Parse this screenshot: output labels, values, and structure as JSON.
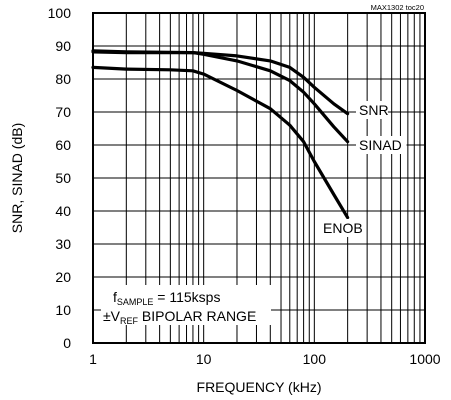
{
  "chart_data": {
    "type": "line",
    "tag": "MAX1302 toc20",
    "xlabel": "FREQUENCY (kHz)",
    "ylabel": "SNR, SINAD (dB)",
    "xscale": "log",
    "xlim": [
      1,
      1000
    ],
    "ylim": [
      0,
      100
    ],
    "xticks": [
      "1",
      "10",
      "100",
      "1000"
    ],
    "yticks": [
      "0",
      "10",
      "20",
      "30",
      "40",
      "50",
      "60",
      "70",
      "80",
      "90",
      "100"
    ],
    "grid": true,
    "annotation": {
      "line1_prefix": "f",
      "line1_sub": "SAMPLE",
      "line1_suffix": " = 115ksps",
      "line2_prefix": "±V",
      "line2_sub": "REF",
      "line2_suffix": " BIPOLAR RANGE"
    },
    "series": [
      {
        "name": "SNR",
        "x": [
          1,
          2,
          5,
          8,
          10,
          20,
          40,
          60,
          80,
          100,
          150,
          200
        ],
        "y": [
          88.5,
          88.2,
          88.1,
          88.0,
          87.8,
          87.0,
          85.5,
          83.5,
          80.5,
          77.5,
          72.5,
          69.5
        ]
      },
      {
        "name": "SINAD",
        "x": [
          1,
          2,
          5,
          8,
          10,
          20,
          40,
          60,
          80,
          100,
          150,
          200
        ],
        "y": [
          88.2,
          88.0,
          88.0,
          88.0,
          87.5,
          85.5,
          82.5,
          79.5,
          76.0,
          72.5,
          65.5,
          61.0
        ]
      },
      {
        "name": "ENOB",
        "x": [
          1,
          2,
          5,
          8,
          10,
          20,
          40,
          60,
          80,
          100,
          150,
          200
        ],
        "y": [
          83.5,
          83.0,
          82.8,
          82.5,
          81.5,
          76.5,
          71.0,
          66.0,
          61.0,
          55.0,
          45.0,
          38.0
        ]
      }
    ]
  }
}
